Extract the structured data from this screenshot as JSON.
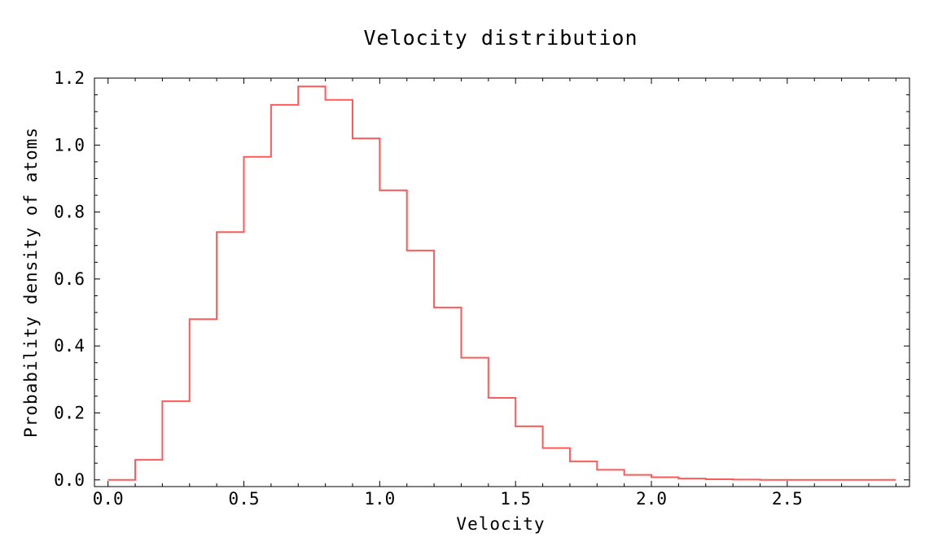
{
  "chart_data": {
    "type": "line",
    "title": "Velocity distribution",
    "xlabel": "Velocity",
    "ylabel": "Probability density of atoms",
    "xlim": [
      -0.05,
      2.95
    ],
    "ylim": [
      -0.02,
      1.2
    ],
    "x_ticks": [
      0.0,
      0.5,
      1.0,
      1.5,
      2.0,
      2.5
    ],
    "x_tick_labels": [
      "0.0",
      "0.5",
      "1.0",
      "1.5",
      "2.0",
      "2.5"
    ],
    "y_ticks": [
      0.0,
      0.2,
      0.4,
      0.6,
      0.8,
      1.0,
      1.2
    ],
    "y_tick_labels": [
      "0.0",
      "0.2",
      "0.4",
      "0.6",
      "0.8",
      "1.0",
      "1.2"
    ],
    "grid": false,
    "line_style": "step",
    "series": [
      {
        "color": "#ff5a5a",
        "bin_edges": [
          0.0,
          0.1,
          0.2,
          0.3,
          0.4,
          0.5,
          0.6,
          0.7,
          0.8,
          0.9,
          1.0,
          1.1,
          1.2,
          1.3,
          1.4,
          1.5,
          1.6,
          1.7,
          1.8,
          1.9,
          2.0,
          2.1,
          2.2,
          2.3,
          2.4,
          2.5,
          2.6,
          2.7,
          2.8,
          2.9
        ],
        "values": [
          0.0,
          0.06,
          0.235,
          0.48,
          0.74,
          0.965,
          1.12,
          1.175,
          1.135,
          1.02,
          0.865,
          0.685,
          0.515,
          0.365,
          0.245,
          0.16,
          0.095,
          0.055,
          0.03,
          0.015,
          0.008,
          0.004,
          0.002,
          0.001,
          0.0,
          0.0,
          0.0,
          0.0,
          0.0
        ]
      }
    ]
  }
}
